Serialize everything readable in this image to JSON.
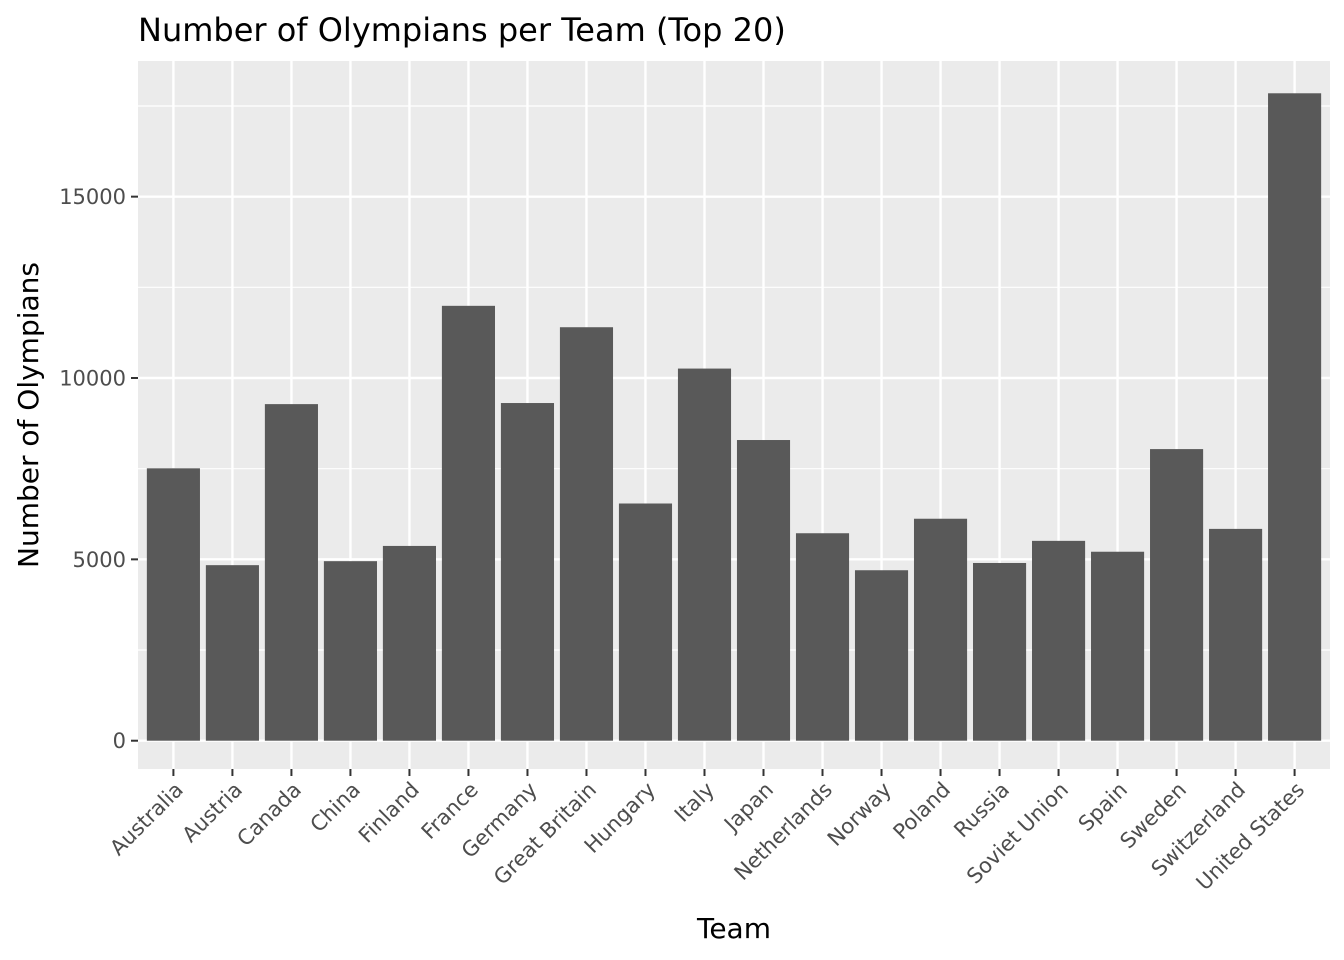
{
  "chart_data": {
    "type": "bar",
    "title": "Number of Olympians per Team (Top 20)",
    "xlabel": "Team",
    "ylabel": "Number of Olympians",
    "categories": [
      "Australia",
      "Austria",
      "Canada",
      "China",
      "Finland",
      "France",
      "Germany",
      "Great Britain",
      "Hungary",
      "Italy",
      "Japan",
      "Netherlands",
      "Norway",
      "Poland",
      "Russia",
      "Soviet Union",
      "Spain",
      "Sweden",
      "Switzerland",
      "United States"
    ],
    "values": [
      7510,
      4840,
      9280,
      4950,
      5370,
      11990,
      9310,
      11400,
      6540,
      10260,
      8290,
      5720,
      4700,
      6120,
      4900,
      5510,
      5210,
      8040,
      5840,
      17850
    ],
    "ylim": [
      -780,
      18740
    ],
    "yticks": [
      0,
      5000,
      10000,
      15000
    ],
    "ytick_labels": [
      "0",
      "5000",
      "10000",
      "15000"
    ],
    "grid": true,
    "colors": {
      "bar": "#595959",
      "panel": "#ebebeb",
      "grid": "#ffffff",
      "tick": "#333333"
    }
  }
}
